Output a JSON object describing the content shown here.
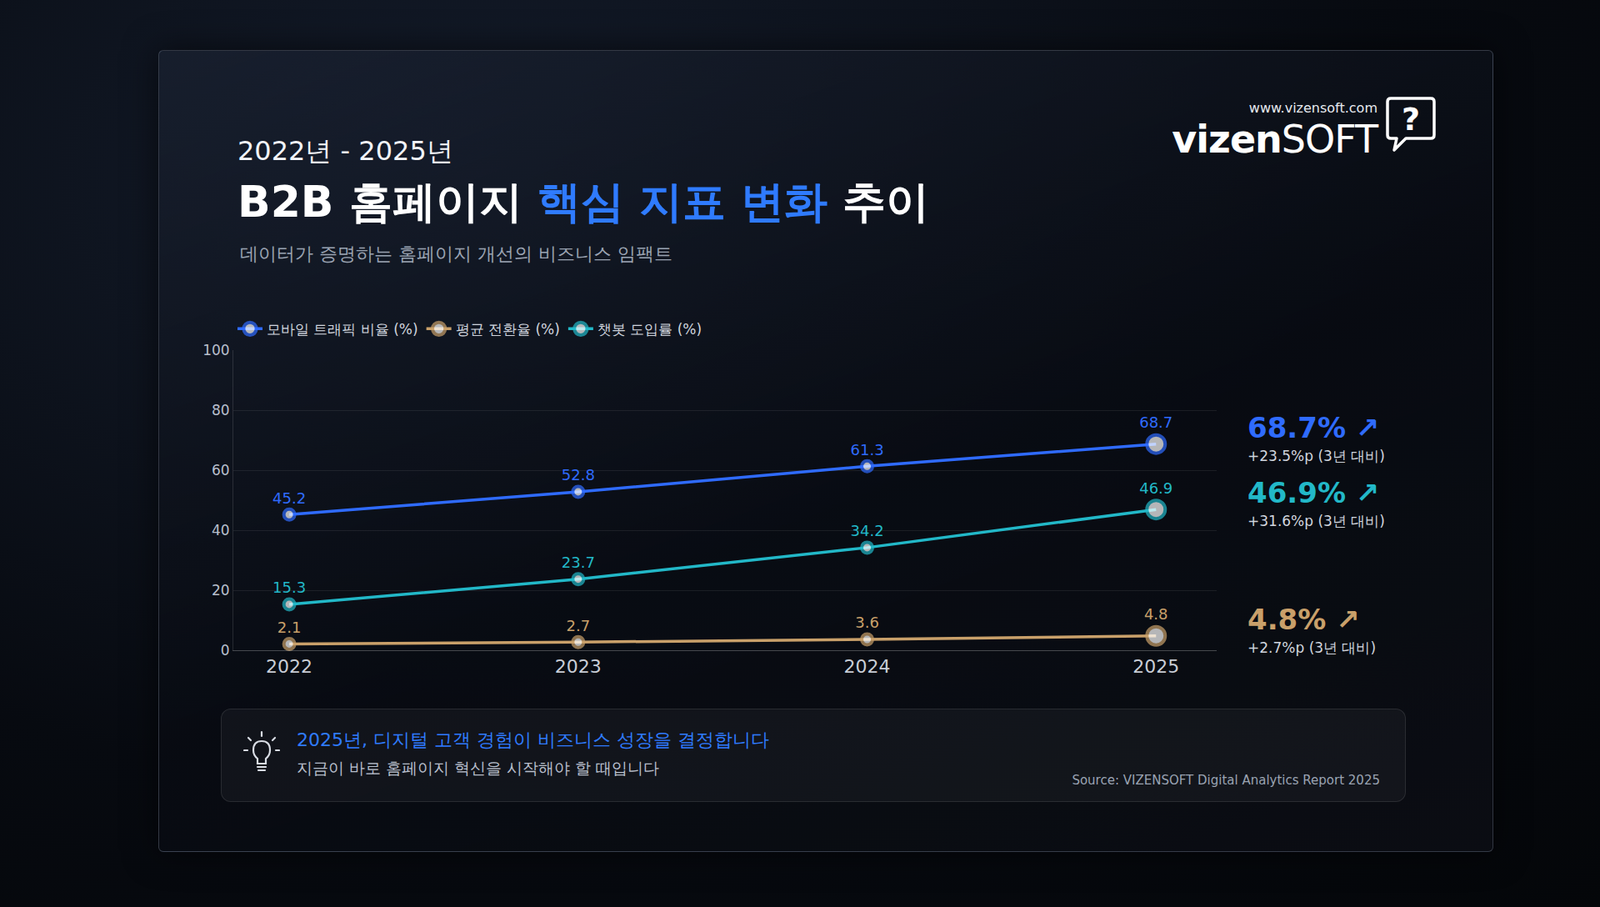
{
  "header": {
    "period": "2022년 - 2025년",
    "title": "B2B 홈페이지 핵심 지표 변화 추이",
    "title_highlight": "핵심 지표 변화",
    "subtitle": "데이터가 증명하는 홈페이지 개선의 비즈니스 임팩트"
  },
  "brand": {
    "url": "www.vizensoft.com",
    "name": "vizenSOFT",
    "icon": "?"
  },
  "chart_data": {
    "type": "line",
    "categories": [
      "2022",
      "2023",
      "2024",
      "2025"
    ],
    "series": [
      {
        "name": "모바일 트래픽 비율 (%)",
        "color": "#2f6bff",
        "values": [
          45.2,
          52.8,
          61.3,
          68.7
        ],
        "summary": {
          "value": "68.7%",
          "arrow": "↗",
          "change": "+23.5%p (3년 대비)"
        }
      },
      {
        "name": "평균 전환율 (%)",
        "color": "#c9a06a",
        "values": [
          2.1,
          2.7,
          3.6,
          4.8
        ],
        "summary": {
          "value": "4.8%",
          "arrow": "↗",
          "change": "+2.7%p (3년 대비)"
        }
      },
      {
        "name": "챗봇 도입률 (%)",
        "color": "#22b8c8",
        "values": [
          15.3,
          23.7,
          34.2,
          46.9
        ],
        "summary": {
          "value": "46.9%",
          "arrow": "↗",
          "change": "+31.6%p (3년 대비)"
        }
      }
    ],
    "ylim": [
      0,
      100
    ],
    "yticks": [
      0,
      20,
      40,
      60,
      80,
      100
    ],
    "grid": true,
    "data_labels": true,
    "legend": "top-left",
    "marker": "circle",
    "line_style": "solid"
  },
  "callout": {
    "headline": "2025년, 디지털 고객 경험이 비즈니스 성장을 결정합니다",
    "text": "지금이 바로 홈페이지 혁신을 시작해야 할 때입니다"
  },
  "source": "Source: VIZENSOFT Digital Analytics Report 2025"
}
